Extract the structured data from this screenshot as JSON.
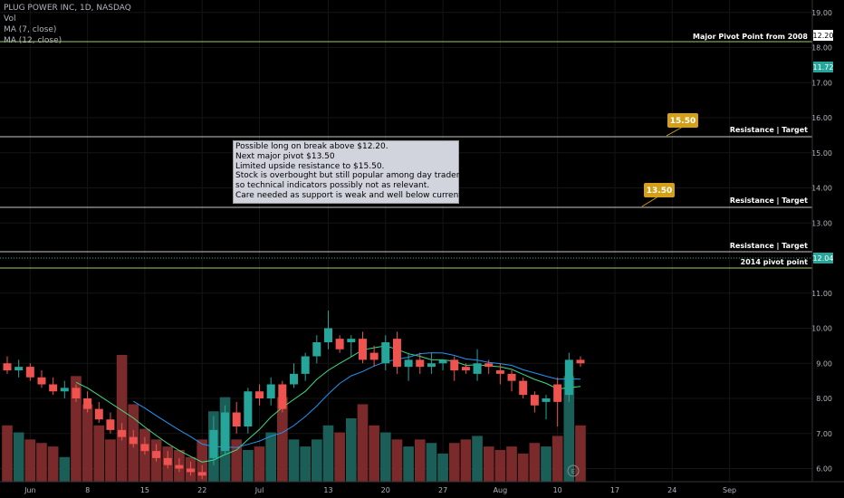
{
  "legend": {
    "symbol": "PLUG POWER INC, 1D, NASDAQ",
    "vol": "Vol",
    "ma7": "MA (7, close)",
    "ma12": "MA (12, close)"
  },
  "note": {
    "lines": [
      "Possible long on break above $12.20.",
      "Next major pivot $13.50",
      "Limited upside resistance to $15.50.",
      "Stock is overbought but still popular among day traders",
      "so technical indicators possibly not as relevant.",
      "Care needed as support is weak and well below current levels."
    ]
  },
  "colors": {
    "up": "#26a69a",
    "down": "#ef5350",
    "vol_up": "#1b5e58",
    "vol_down": "#7a2a2a",
    "ma7": "#3ddc84",
    "ma12": "#2196f3",
    "callout": "#d4a017",
    "price_tag": "#26a69a",
    "level_line": "#c8c8c8",
    "green_line": "#9ccc65"
  },
  "chart_data": {
    "type": "candlestick",
    "y_ticks": [
      "6.00",
      "7.00",
      "8.00",
      "9.00",
      "10.00",
      "11.00",
      "12.00",
      "13.00",
      "14.00",
      "15.00",
      "16.00",
      "17.00",
      "18.00",
      "19.00"
    ],
    "ylim": [
      5.7,
      19.3
    ],
    "x_ticks": [
      {
        "label": "Jun",
        "index": 2
      },
      {
        "label": "8",
        "index": 7
      },
      {
        "label": "15",
        "index": 12
      },
      {
        "label": "22",
        "index": 17
      },
      {
        "label": "Jul",
        "index": 22
      },
      {
        "label": "13",
        "index": 28
      },
      {
        "label": "20",
        "index": 33
      },
      {
        "label": "27",
        "index": 38
      },
      {
        "label": "Aug",
        "index": 43
      },
      {
        "label": "10",
        "index": 48
      },
      {
        "label": "17",
        "index": 53
      },
      {
        "label": "24",
        "index": 58
      },
      {
        "label": "Sep",
        "index": 63
      }
    ],
    "candles": [
      {
        "o": 9.0,
        "h": 9.2,
        "l": 8.7,
        "c": 8.8,
        "v": 8000000
      },
      {
        "o": 8.8,
        "h": 9.1,
        "l": 8.6,
        "c": 8.9,
        "v": 7000000
      },
      {
        "o": 8.9,
        "h": 9.0,
        "l": 8.5,
        "c": 8.6,
        "v": 6000000
      },
      {
        "o": 8.6,
        "h": 8.8,
        "l": 8.3,
        "c": 8.4,
        "v": 5500000
      },
      {
        "o": 8.4,
        "h": 8.6,
        "l": 8.1,
        "c": 8.2,
        "v": 5000000
      },
      {
        "o": 8.2,
        "h": 8.5,
        "l": 8.0,
        "c": 8.3,
        "v": 3500000
      },
      {
        "o": 8.3,
        "h": 8.4,
        "l": 7.9,
        "c": 8.0,
        "v": 15000000
      },
      {
        "o": 8.0,
        "h": 8.2,
        "l": 7.6,
        "c": 7.7,
        "v": 11000000
      },
      {
        "o": 7.7,
        "h": 7.9,
        "l": 7.3,
        "c": 7.4,
        "v": 8000000
      },
      {
        "o": 7.4,
        "h": 7.6,
        "l": 7.0,
        "c": 7.1,
        "v": 6000000
      },
      {
        "o": 7.1,
        "h": 7.3,
        "l": 6.8,
        "c": 6.9,
        "v": 18000000
      },
      {
        "o": 6.9,
        "h": 7.1,
        "l": 6.6,
        "c": 6.7,
        "v": 11000000
      },
      {
        "o": 6.7,
        "h": 6.9,
        "l": 6.4,
        "c": 6.5,
        "v": 7500000
      },
      {
        "o": 6.5,
        "h": 6.7,
        "l": 6.2,
        "c": 6.3,
        "v": 6000000
      },
      {
        "o": 6.3,
        "h": 6.5,
        "l": 6.0,
        "c": 6.1,
        "v": 5000000
      },
      {
        "o": 6.1,
        "h": 6.3,
        "l": 5.9,
        "c": 6.0,
        "v": 4500000
      },
      {
        "o": 6.0,
        "h": 6.2,
        "l": 5.8,
        "c": 5.9,
        "v": 3500000
      },
      {
        "o": 5.9,
        "h": 6.1,
        "l": 5.7,
        "c": 5.8,
        "v": 6000000
      },
      {
        "o": 6.3,
        "h": 7.5,
        "l": 6.1,
        "c": 7.1,
        "v": 10000000
      },
      {
        "o": 6.5,
        "h": 7.8,
        "l": 6.4,
        "c": 7.6,
        "v": 12000000
      },
      {
        "o": 7.6,
        "h": 7.9,
        "l": 7.0,
        "c": 7.2,
        "v": 6000000
      },
      {
        "o": 7.2,
        "h": 8.3,
        "l": 7.0,
        "c": 8.2,
        "v": 4500000
      },
      {
        "o": 8.2,
        "h": 8.4,
        "l": 7.8,
        "c": 8.0,
        "v": 5000000
      },
      {
        "o": 8.0,
        "h": 8.6,
        "l": 7.8,
        "c": 8.4,
        "v": 7000000
      },
      {
        "o": 8.4,
        "h": 8.5,
        "l": 7.6,
        "c": 7.7,
        "v": 12000000
      },
      {
        "o": 8.4,
        "h": 9.0,
        "l": 8.3,
        "c": 8.7,
        "v": 6000000
      },
      {
        "o": 8.7,
        "h": 9.3,
        "l": 8.5,
        "c": 9.2,
        "v": 5000000
      },
      {
        "o": 9.2,
        "h": 9.8,
        "l": 9.0,
        "c": 9.6,
        "v": 6000000
      },
      {
        "o": 9.6,
        "h": 10.5,
        "l": 9.4,
        "c": 10.0,
        "v": 8000000
      },
      {
        "o": 9.7,
        "h": 9.8,
        "l": 9.3,
        "c": 9.4,
        "v": 7000000
      },
      {
        "o": 9.6,
        "h": 9.8,
        "l": 9.2,
        "c": 9.7,
        "v": 9000000
      },
      {
        "o": 9.7,
        "h": 9.9,
        "l": 9.0,
        "c": 9.1,
        "v": 11000000
      },
      {
        "o": 9.3,
        "h": 9.5,
        "l": 8.9,
        "c": 9.1,
        "v": 8000000
      },
      {
        "o": 9.0,
        "h": 9.8,
        "l": 8.8,
        "c": 9.6,
        "v": 7000000
      },
      {
        "o": 9.7,
        "h": 9.9,
        "l": 8.7,
        "c": 8.9,
        "v": 6000000
      },
      {
        "o": 8.9,
        "h": 9.3,
        "l": 8.5,
        "c": 9.1,
        "v": 5000000
      },
      {
        "o": 9.1,
        "h": 9.3,
        "l": 8.7,
        "c": 8.9,
        "v": 6000000
      },
      {
        "o": 8.9,
        "h": 9.3,
        "l": 8.7,
        "c": 9.0,
        "v": 5500000
      },
      {
        "o": 9.0,
        "h": 9.1,
        "l": 8.8,
        "c": 9.1,
        "v": 4000000
      },
      {
        "o": 9.1,
        "h": 9.2,
        "l": 8.5,
        "c": 8.8,
        "v": 5500000
      },
      {
        "o": 8.9,
        "h": 9.0,
        "l": 8.7,
        "c": 8.8,
        "v": 6000000
      },
      {
        "o": 8.7,
        "h": 9.4,
        "l": 8.5,
        "c": 9.0,
        "v": 6500000
      },
      {
        "o": 9.0,
        "h": 9.1,
        "l": 8.7,
        "c": 8.9,
        "v": 5000000
      },
      {
        "o": 8.8,
        "h": 9.0,
        "l": 8.4,
        "c": 8.7,
        "v": 4500000
      },
      {
        "o": 8.7,
        "h": 8.8,
        "l": 8.2,
        "c": 8.5,
        "v": 5000000
      },
      {
        "o": 8.5,
        "h": 8.6,
        "l": 8.0,
        "c": 8.1,
        "v": 4000000
      },
      {
        "o": 8.1,
        "h": 8.2,
        "l": 7.6,
        "c": 7.8,
        "v": 5500000
      },
      {
        "o": 7.9,
        "h": 8.1,
        "l": 7.4,
        "c": 8.0,
        "v": 5000000
      },
      {
        "o": 8.4,
        "h": 8.6,
        "l": 7.2,
        "c": 7.9,
        "v": 6500000
      },
      {
        "o": 8.1,
        "h": 9.3,
        "l": 7.9,
        "c": 9.1,
        "v": 15000000
      },
      {
        "o": 9.1,
        "h": 9.2,
        "l": 8.9,
        "c": 9.0,
        "v": 8000000
      }
    ]
  }
}
